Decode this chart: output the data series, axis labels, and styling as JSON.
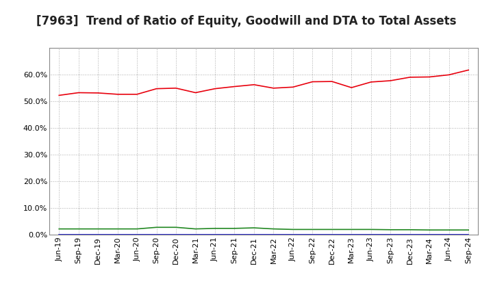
{
  "title": "[7963]  Trend of Ratio of Equity, Goodwill and DTA to Total Assets",
  "x_labels": [
    "Jun-19",
    "Sep-19",
    "Dec-19",
    "Mar-20",
    "Jun-20",
    "Sep-20",
    "Dec-20",
    "Mar-21",
    "Jun-21",
    "Sep-21",
    "Dec-21",
    "Mar-22",
    "Jun-22",
    "Sep-22",
    "Dec-22",
    "Mar-23",
    "Jun-23",
    "Sep-23",
    "Dec-23",
    "Mar-24",
    "Jun-24",
    "Sep-24"
  ],
  "equity": [
    0.523,
    0.533,
    0.532,
    0.527,
    0.527,
    0.548,
    0.55,
    0.533,
    0.548,
    0.556,
    0.563,
    0.55,
    0.554,
    0.574,
    0.575,
    0.552,
    0.573,
    0.578,
    0.591,
    0.592,
    0.6,
    0.618
  ],
  "goodwill": [
    0.001,
    0.001,
    0.001,
    0.001,
    0.001,
    0.001,
    0.001,
    0.001,
    0.001,
    0.001,
    0.001,
    0.001,
    0.001,
    0.001,
    0.001,
    0.001,
    0.001,
    0.001,
    0.001,
    0.001,
    0.001,
    0.001
  ],
  "dta": [
    0.022,
    0.022,
    0.022,
    0.022,
    0.022,
    0.028,
    0.028,
    0.022,
    0.024,
    0.024,
    0.026,
    0.022,
    0.02,
    0.02,
    0.02,
    0.02,
    0.02,
    0.019,
    0.019,
    0.018,
    0.018,
    0.018
  ],
  "equity_color": "#e8000d",
  "goodwill_color": "#0000cc",
  "dta_color": "#228822",
  "ylim": [
    0.0,
    0.7
  ],
  "yticks": [
    0.0,
    0.1,
    0.2,
    0.3,
    0.4,
    0.5,
    0.6
  ],
  "background_color": "#ffffff",
  "grid_color": "#aaaaaa",
  "title_fontsize": 12,
  "tick_fontsize": 8,
  "legend_fontsize": 9.5
}
